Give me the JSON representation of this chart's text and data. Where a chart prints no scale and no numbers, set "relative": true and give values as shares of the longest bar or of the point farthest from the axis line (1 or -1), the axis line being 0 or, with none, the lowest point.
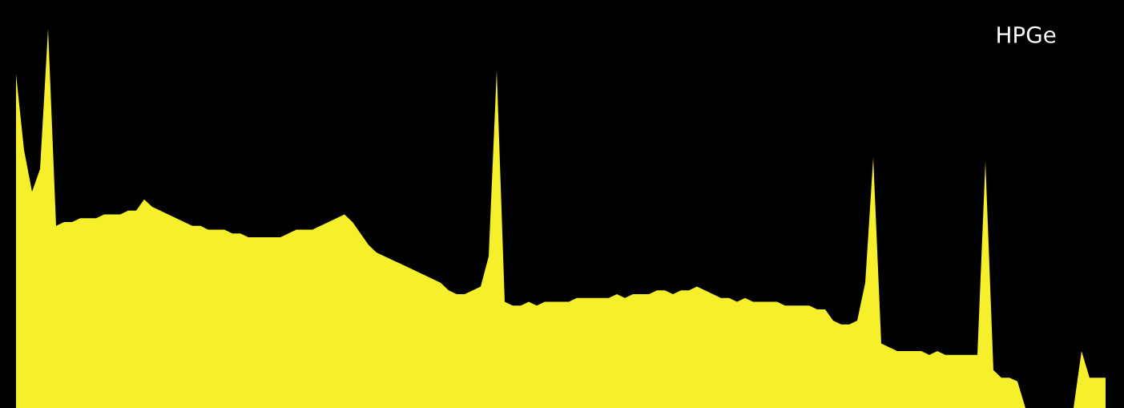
{
  "chart_data": {
    "type": "area",
    "relative": true,
    "color": "#f5ef2c",
    "annotations": [
      "HPGe"
    ],
    "categories": [
      null,
      null,
      null,
      null,
      null,
      null,
      null,
      null,
      null,
      null,
      null,
      null,
      null,
      null,
      null,
      null,
      null,
      null,
      null,
      null,
      null,
      null,
      null,
      null,
      null,
      null,
      null,
      null,
      null,
      null,
      null,
      null,
      null,
      null,
      null,
      null,
      null,
      null,
      null,
      null,
      null,
      null,
      null,
      null,
      null,
      null,
      null,
      null,
      null,
      null,
      null,
      null,
      null,
      null,
      null,
      null,
      null,
      null,
      null,
      null,
      null,
      null,
      null,
      null,
      null,
      null,
      null,
      null,
      null,
      null,
      null,
      null,
      null,
      null,
      null,
      null,
      null,
      null,
      null,
      null,
      null,
      null,
      null,
      null,
      null,
      null,
      null,
      null,
      null,
      null,
      null,
      null,
      null,
      null,
      null,
      null,
      null,
      null,
      null,
      null,
      null,
      null,
      null,
      null,
      null,
      null,
      null,
      null,
      null,
      null,
      null,
      null,
      null,
      null,
      null,
      null,
      null,
      null,
      null,
      null,
      null,
      null,
      null,
      null,
      null,
      null,
      null,
      null,
      null,
      null,
      null,
      null,
      null,
      null,
      null,
      null,
      null
    ],
    "values": [
      0.88,
      0.68,
      0.57,
      0.63,
      1.0,
      0.48,
      0.49,
      0.49,
      0.5,
      0.5,
      0.5,
      0.51,
      0.51,
      0.51,
      0.52,
      0.52,
      0.55,
      0.53,
      0.52,
      0.51,
      0.5,
      0.49,
      0.48,
      0.48,
      0.47,
      0.47,
      0.47,
      0.46,
      0.46,
      0.45,
      0.45,
      0.45,
      0.45,
      0.45,
      0.46,
      0.47,
      0.47,
      0.47,
      0.48,
      0.49,
      0.5,
      0.51,
      0.49,
      0.46,
      0.43,
      0.41,
      0.4,
      0.39,
      0.38,
      0.37,
      0.36,
      0.35,
      0.34,
      0.33,
      0.31,
      0.3,
      0.3,
      0.31,
      0.32,
      0.4,
      0.89,
      0.28,
      0.27,
      0.27,
      0.28,
      0.27,
      0.28,
      0.28,
      0.28,
      0.28,
      0.29,
      0.29,
      0.29,
      0.29,
      0.29,
      0.3,
      0.29,
      0.3,
      0.3,
      0.3,
      0.31,
      0.31,
      0.3,
      0.31,
      0.31,
      0.32,
      0.31,
      0.3,
      0.29,
      0.29,
      0.28,
      0.29,
      0.28,
      0.28,
      0.28,
      0.28,
      0.27,
      0.27,
      0.27,
      0.27,
      0.26,
      0.26,
      0.23,
      0.22,
      0.22,
      0.23,
      0.33,
      0.66,
      0.17,
      0.16,
      0.15,
      0.15,
      0.15,
      0.15,
      0.14,
      0.15,
      0.14,
      0.14,
      0.14,
      0.14,
      0.14,
      0.65,
      0.1,
      0.08,
      0.08,
      0.07,
      0.0,
      0.0,
      0.0,
      0.0,
      0.0,
      0.0,
      0.0,
      0.15,
      0.08,
      0.08,
      0.08
    ]
  }
}
